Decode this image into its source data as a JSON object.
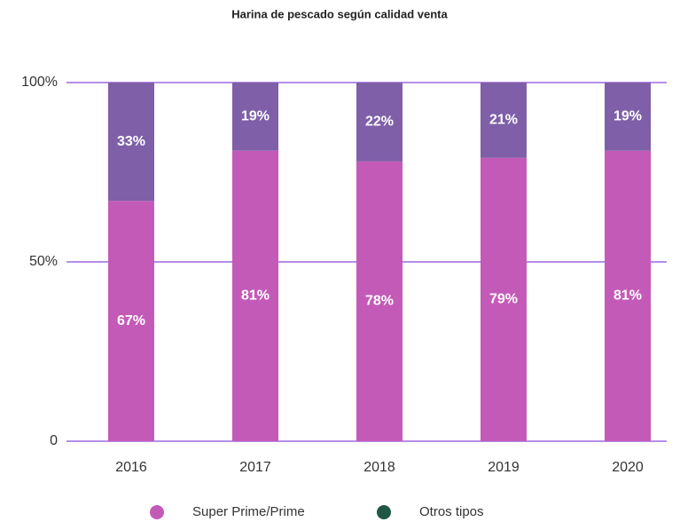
{
  "chart_data": {
    "type": "stacked_bar",
    "title": "Harina de pescado según calidad venta",
    "categories": [
      "2016",
      "2017",
      "2018",
      "2019",
      "2020"
    ],
    "series": [
      {
        "name": "Super Prime/Prime",
        "color": "#c45ab8",
        "legend_color": "#c45ab8",
        "values": [
          67,
          81,
          78,
          79,
          81
        ],
        "value_labels": [
          "67%",
          "81%",
          "78%",
          "79%",
          "81%"
        ]
      },
      {
        "name": "Otros tipos",
        "color": "#7e5fa8",
        "legend_color": "#1f5646",
        "values": [
          33,
          19,
          22,
          21,
          19
        ],
        "value_labels": [
          "33%",
          "19%",
          "22%",
          "21%",
          "19%"
        ]
      }
    ],
    "ylim": [
      0,
      100
    ],
    "yticks": [
      {
        "value": 0,
        "label": "0"
      },
      {
        "value": 50,
        "label": "50%"
      },
      {
        "value": 100,
        "label": "100%"
      }
    ],
    "grid": true,
    "grid_color": "#b58ee8",
    "legend": "bottom"
  }
}
